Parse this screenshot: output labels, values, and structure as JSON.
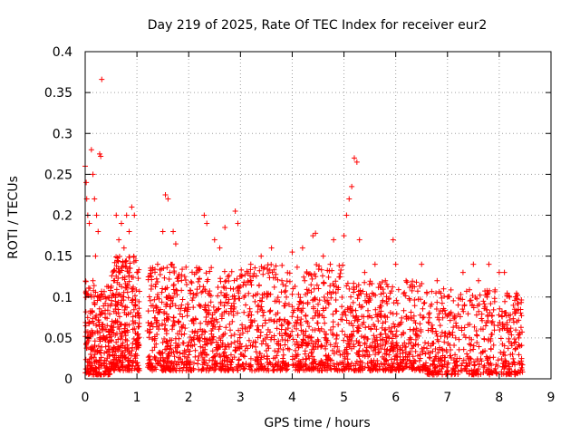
{
  "chart_data": {
    "type": "scatter",
    "title": "Day 219 of 2025, Rate Of TEC Index for receiver eur2",
    "xlabel": "GPS time / hours",
    "ylabel": "ROTI / TECUs",
    "xlim": [
      0,
      9
    ],
    "ylim": [
      0,
      0.4
    ],
    "x_ticks": [
      "0",
      "1",
      "2",
      "3",
      "4",
      "5",
      "6",
      "7",
      "8",
      "9"
    ],
    "y_ticks": [
      "0",
      "0.05",
      "0.1",
      "0.15",
      "0.2",
      "0.25",
      "0.3",
      "0.35",
      "0.4"
    ],
    "grid": true,
    "marker": "plus",
    "series": [
      {
        "name": "ROTI",
        "color": "#ff0000",
        "points": [
          [
            0.0,
            0.26
          ],
          [
            0.02,
            0.24
          ],
          [
            0.03,
            0.22
          ],
          [
            0.05,
            0.2
          ],
          [
            0.08,
            0.19
          ],
          [
            0.12,
            0.28
          ],
          [
            0.15,
            0.25
          ],
          [
            0.18,
            0.22
          ],
          [
            0.22,
            0.2
          ],
          [
            0.25,
            0.18
          ],
          [
            0.28,
            0.275
          ],
          [
            0.3,
            0.272
          ],
          [
            0.32,
            0.366
          ],
          [
            0.35,
            0.1
          ],
          [
            0.4,
            0.06
          ],
          [
            0.45,
            0.04
          ],
          [
            0.05,
            0.05
          ],
          [
            0.1,
            0.08
          ],
          [
            0.15,
            0.12
          ],
          [
            0.2,
            0.15
          ],
          [
            0.6,
            0.2
          ],
          [
            0.65,
            0.17
          ],
          [
            0.7,
            0.19
          ],
          [
            0.75,
            0.16
          ],
          [
            0.8,
            0.2
          ],
          [
            0.85,
            0.18
          ],
          [
            0.9,
            0.21
          ],
          [
            0.95,
            0.2
          ],
          [
            0.55,
            0.12
          ],
          [
            0.6,
            0.08
          ],
          [
            0.9,
            0.11
          ],
          [
            1.0,
            0.13
          ],
          [
            1.5,
            0.18
          ],
          [
            1.55,
            0.225
          ],
          [
            1.6,
            0.22
          ],
          [
            1.7,
            0.18
          ],
          [
            1.75,
            0.165
          ],
          [
            1.4,
            0.14
          ],
          [
            2.3,
            0.2
          ],
          [
            2.35,
            0.19
          ],
          [
            2.5,
            0.17
          ],
          [
            2.6,
            0.16
          ],
          [
            2.7,
            0.185
          ],
          [
            2.9,
            0.205
          ],
          [
            2.95,
            0.19
          ],
          [
            3.2,
            0.14
          ],
          [
            3.4,
            0.15
          ],
          [
            3.6,
            0.16
          ],
          [
            3.8,
            0.12
          ],
          [
            4.0,
            0.155
          ],
          [
            4.2,
            0.16
          ],
          [
            4.4,
            0.175
          ],
          [
            4.45,
            0.178
          ],
          [
            4.6,
            0.15
          ],
          [
            4.8,
            0.17
          ],
          [
            5.0,
            0.175
          ],
          [
            5.05,
            0.2
          ],
          [
            5.1,
            0.22
          ],
          [
            5.15,
            0.235
          ],
          [
            5.2,
            0.27
          ],
          [
            5.25,
            0.265
          ],
          [
            5.3,
            0.17
          ],
          [
            5.4,
            0.13
          ],
          [
            5.6,
            0.14
          ],
          [
            5.8,
            0.12
          ],
          [
            5.95,
            0.17
          ],
          [
            6.0,
            0.14
          ],
          [
            6.2,
            0.12
          ],
          [
            6.5,
            0.14
          ],
          [
            6.8,
            0.12
          ],
          [
            7.0,
            0.1
          ],
          [
            7.3,
            0.13
          ],
          [
            7.5,
            0.14
          ],
          [
            7.6,
            0.12
          ],
          [
            7.8,
            0.14
          ],
          [
            8.0,
            0.13
          ],
          [
            8.1,
            0.13
          ],
          [
            8.2,
            0.1
          ],
          [
            8.3,
            0.08
          ],
          [
            8.4,
            0.04
          ]
        ]
      }
    ],
    "density_segments": [
      {
        "x": [
          0.0,
          0.5
        ],
        "y": [
          0.005,
          0.12
        ],
        "n": 260
      },
      {
        "x": [
          0.5,
          1.05
        ],
        "y": [
          0.01,
          0.15
        ],
        "n": 320
      },
      {
        "x": [
          1.2,
          3.0
        ],
        "y": [
          0.01,
          0.14
        ],
        "n": 650
      },
      {
        "x": [
          3.0,
          5.0
        ],
        "y": [
          0.01,
          0.14
        ],
        "n": 620
      },
      {
        "x": [
          5.0,
          6.6
        ],
        "y": [
          0.01,
          0.12
        ],
        "n": 520
      },
      {
        "x": [
          6.6,
          8.45
        ],
        "y": [
          0.005,
          0.11
        ],
        "n": 520
      }
    ]
  }
}
